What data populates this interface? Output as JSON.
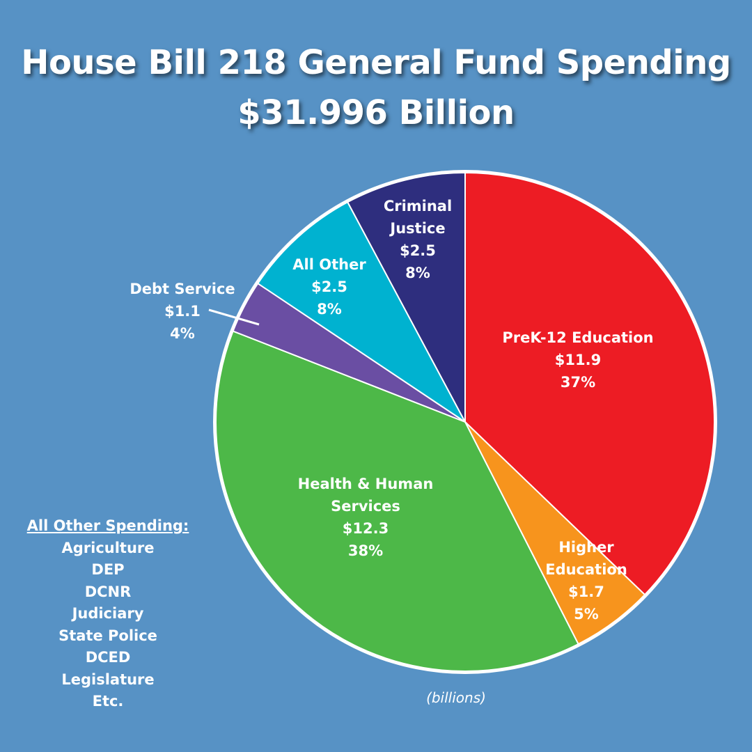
{
  "chart_data": {
    "type": "pie",
    "title": "House Bill 218 General Fund Spending",
    "subtitle": "$31.996 Billion",
    "unit_note": "(billions)",
    "slices": [
      {
        "name": "PreK-12 Education",
        "value": 11.9,
        "value_label": "$11.9",
        "percent_label": "37%",
        "color": "#ed1c24"
      },
      {
        "name": "Higher Education",
        "value": 1.7,
        "value_label": "$1.7",
        "percent_label": "5%",
        "color": "#f7941d"
      },
      {
        "name": "Health & Human Services",
        "value": 12.3,
        "value_label": "$12.3",
        "percent_label": "38%",
        "color": "#4db848"
      },
      {
        "name": "Debt Service",
        "value": 1.1,
        "value_label": "$1.1",
        "percent_label": "4%",
        "color": "#6a4ea3"
      },
      {
        "name": "All Other",
        "value": 2.5,
        "value_label": "$2.5",
        "percent_label": "8%",
        "color": "#00b2d0"
      },
      {
        "name": "Criminal Justice",
        "value": 2.5,
        "value_label": "$2.5",
        "percent_label": "8%",
        "color": "#2e2e7e"
      }
    ]
  },
  "other_spending": {
    "heading": "All Other Spending:",
    "items": [
      "Agriculture",
      "DEP",
      "DCNR",
      "Judiciary",
      "State Police",
      "DCED",
      "Legislature",
      "Etc."
    ]
  }
}
